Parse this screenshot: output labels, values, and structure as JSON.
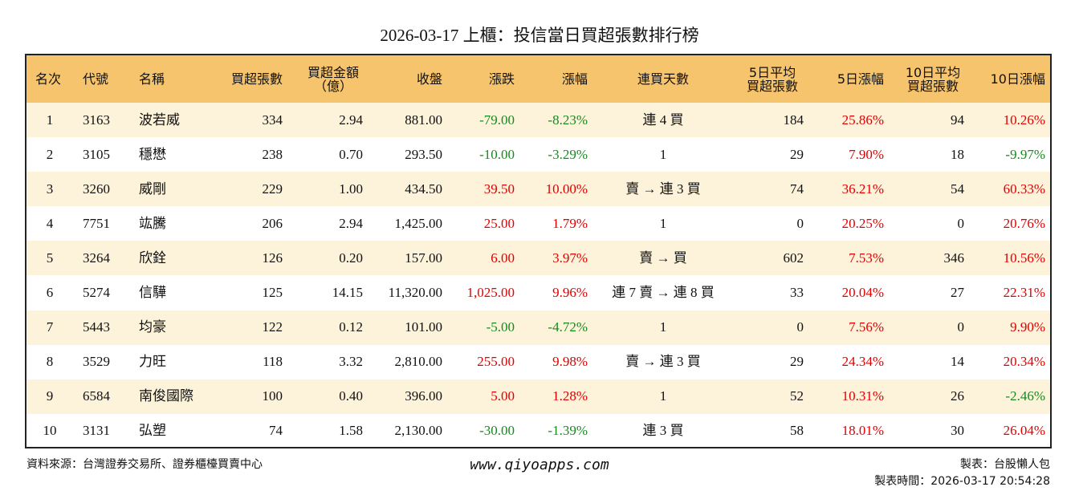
{
  "header": {
    "title": "2026-03-17 上櫃：投信當日買超張數排行榜"
  },
  "table": {
    "columns": [
      "名次",
      "代號",
      "名稱",
      "買超張數",
      "買超金額\n（億）",
      "收盤",
      "漲跌",
      "漲幅",
      "連買天數",
      "5日平均\n買超張數",
      "5日漲幅",
      "10日平均\n買超張數",
      "10日漲幅"
    ],
    "rows": [
      [
        "1",
        "3163",
        "波若威",
        "334",
        "2.94",
        "881.00",
        "-79.00",
        "-8.23%",
        "連 4 買",
        "184",
        "25.86%",
        "94",
        "10.26%"
      ],
      [
        "2",
        "3105",
        "穩懋",
        "238",
        "0.70",
        "293.50",
        "-10.00",
        "-3.29%",
        "1",
        "29",
        "7.90%",
        "18",
        "-9.97%"
      ],
      [
        "3",
        "3260",
        "威剛",
        "229",
        "1.00",
        "434.50",
        "39.50",
        "10.00%",
        "賣 → 連 3 買",
        "74",
        "36.21%",
        "54",
        "60.33%"
      ],
      [
        "4",
        "7751",
        "竑騰",
        "206",
        "2.94",
        "1,425.00",
        "25.00",
        "1.79%",
        "1",
        "0",
        "20.25%",
        "0",
        "20.76%"
      ],
      [
        "5",
        "3264",
        "欣銓",
        "126",
        "0.20",
        "157.00",
        "6.00",
        "3.97%",
        "賣 → 買",
        "602",
        "7.53%",
        "346",
        "10.56%"
      ],
      [
        "6",
        "5274",
        "信驊",
        "125",
        "14.15",
        "11,320.00",
        "1,025.00",
        "9.96%",
        "連 7 賣 → 連 8 買",
        "33",
        "20.04%",
        "27",
        "22.31%"
      ],
      [
        "7",
        "5443",
        "均豪",
        "122",
        "0.12",
        "101.00",
        "-5.00",
        "-4.72%",
        "1",
        "0",
        "7.56%",
        "0",
        "9.90%"
      ],
      [
        "8",
        "3529",
        "力旺",
        "118",
        "3.32",
        "2,810.00",
        "255.00",
        "9.98%",
        "賣 → 連 3 買",
        "29",
        "24.34%",
        "14",
        "20.34%"
      ],
      [
        "9",
        "6584",
        "南俊國際",
        "100",
        "0.40",
        "396.00",
        "5.00",
        "1.28%",
        "1",
        "52",
        "10.31%",
        "26",
        "-2.46%"
      ],
      [
        "10",
        "3131",
        "弘塑",
        "74",
        "1.58",
        "2,130.00",
        "-30.00",
        "-1.39%",
        "連 3 買",
        "58",
        "18.01%",
        "30",
        "26.04%"
      ]
    ]
  },
  "footer": {
    "source": "資料來源：台灣證券交易所、證券櫃檯買賣中心",
    "website": "www.qiyoapps.com",
    "maker": "製表：台股懶人包",
    "time": "製表時間：2026-03-17 20:54:28"
  }
}
